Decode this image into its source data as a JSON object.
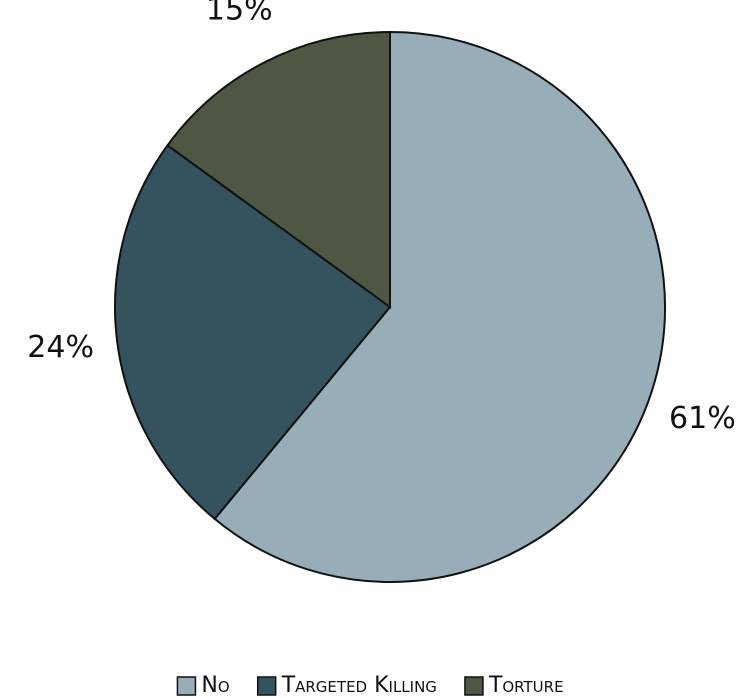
{
  "chart_data": {
    "type": "pie",
    "categories": [
      "No",
      "Targeted Killing",
      "Torture"
    ],
    "values": [
      61,
      24,
      15
    ],
    "value_labels": [
      "61%",
      "24%",
      "15%"
    ],
    "colors": [
      "#97aeb8",
      "#35535f",
      "#4d5744"
    ],
    "legend": "bottom"
  }
}
